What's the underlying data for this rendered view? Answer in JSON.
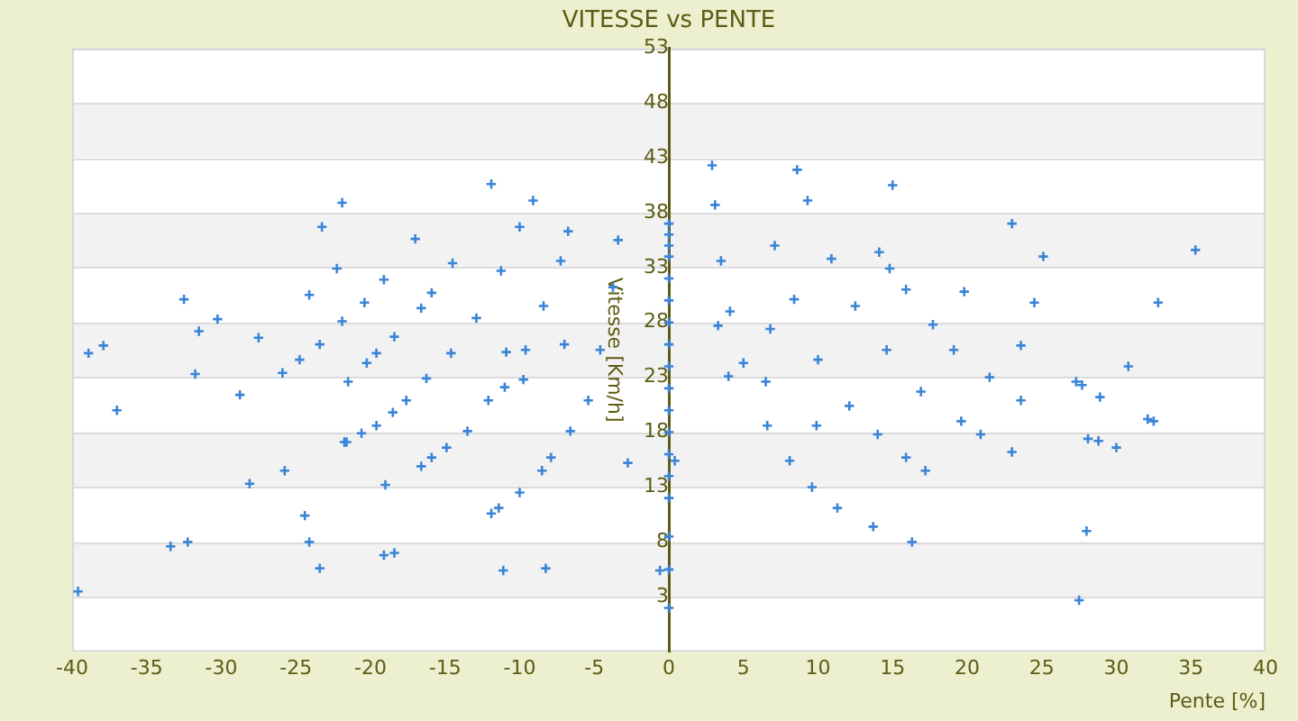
{
  "chart_data": {
    "type": "scatter",
    "title": "VITESSE vs PENTE",
    "xlabel": "Pente [%]",
    "ylabel": "Vitesse [Km/h]",
    "xlim": [
      -40,
      40
    ],
    "xticks": [
      -40,
      -35,
      -30,
      -25,
      -20,
      -15,
      -10,
      -5,
      0,
      5,
      10,
      15,
      20,
      25,
      30,
      35,
      40
    ],
    "ylim": [
      -2,
      53
    ],
    "yticks": [
      3,
      8,
      13,
      18,
      23,
      28,
      33,
      38,
      43,
      48,
      53
    ],
    "grid": "y",
    "marker": "cross",
    "legend": false,
    "bands": [
      {
        "axis": "y",
        "from": 3,
        "to": 8,
        "color": "#f2f2f2"
      },
      {
        "axis": "y",
        "from": 13,
        "to": 18,
        "color": "#f2f2f2"
      },
      {
        "axis": "y",
        "from": 23,
        "to": 28,
        "color": "#f2f2f2"
      },
      {
        "axis": "y",
        "from": 33,
        "to": 38,
        "color": "#f2f2f2"
      },
      {
        "axis": "y",
        "from": 43,
        "to": 48,
        "color": "#f2f2f2"
      }
    ],
    "series": [
      {
        "color": "#3a84d8",
        "x": [
          3.5,
          4.1,
          5,
          6.6,
          8.1,
          9.6,
          11.3,
          13.7,
          7.1,
          8.4,
          10,
          12.1,
          14,
          15.9,
          17.2,
          10.9,
          12.5,
          14.6,
          16.9,
          19.6,
          15.9,
          17.7,
          19.1,
          21.5,
          2.9,
          8.6,
          15,
          9.3,
          3.1,
          23,
          25.1,
          35.3,
          14.1,
          14.8,
          19.8,
          24.5,
          32.8,
          3.3,
          6.8,
          23.6,
          30.8,
          4,
          6.5,
          27.3,
          27.7,
          28.9,
          23.6,
          32.1,
          32.5,
          9.9,
          20.9,
          28.1,
          28.8,
          30,
          23,
          0.4,
          28,
          16.3,
          27.5,
          -0.6,
          0,
          0,
          0,
          0,
          0,
          0,
          0,
          0,
          0,
          0,
          0,
          0,
          0,
          0,
          0,
          0,
          0,
          0,
          -3.4,
          -3.75,
          -4.6,
          -5.4,
          -6.6,
          -7.9,
          -8.5,
          -6.75,
          -7.25,
          -8.4,
          -9.6,
          -11,
          -12.1,
          -13.5,
          -10,
          -11.25,
          -12.9,
          -14.6,
          -16.25,
          -14.5,
          -15.9,
          -16.6,
          -19.1,
          -20.4,
          -21.9,
          -23.4,
          -24.75,
          -25.9,
          -18.4,
          -19.6,
          -20.25,
          -21.5,
          -18.5,
          -19.6,
          -20.6,
          -21.6,
          -14.9,
          -15.9,
          -16.6,
          -11.9,
          -9.1,
          -21.9,
          -23.25,
          -17,
          -22.25,
          -32.5,
          -24.1,
          -30.25,
          -31.5,
          -27.5,
          -38.9,
          -37.9,
          -31.75,
          -10.9,
          -7,
          -9.75,
          -37,
          -28.75,
          -17.6,
          -21.75,
          -25.75,
          -28.1,
          -19,
          -10,
          -11.9,
          -11.4,
          -24.4,
          -33.4,
          -32.25,
          -24.1,
          -19.1,
          -18.4,
          -23.4,
          -11.1,
          -8.25,
          -39.6,
          -2.75
        ],
        "values": [
          33.6,
          29,
          24.3,
          18.6,
          15.4,
          13,
          11.1,
          9.4,
          35,
          30.1,
          24.6,
          20.4,
          17.8,
          15.7,
          14.5,
          33.8,
          29.5,
          25.5,
          21.7,
          19,
          31,
          27.8,
          25.5,
          23,
          42.3,
          41.9,
          40.5,
          39.1,
          38.7,
          37,
          34,
          34.6,
          34.4,
          32.9,
          30.8,
          29.8,
          29.8,
          27.7,
          27.4,
          25.9,
          24,
          23.1,
          22.6,
          22.6,
          22.3,
          21.2,
          20.9,
          19.2,
          19,
          18.6,
          17.8,
          17.4,
          17.2,
          16.6,
          16.2,
          15.4,
          9,
          8,
          2.7,
          5.4,
          2,
          5.5,
          8.5,
          12,
          14,
          16,
          18,
          20,
          22,
          24,
          26,
          28,
          30,
          32,
          34,
          35,
          36,
          37,
          35.5,
          31.2,
          25.5,
          20.9,
          18.1,
          15.7,
          14.5,
          36.3,
          33.6,
          29.5,
          25.5,
          22.1,
          20.9,
          18.1,
          36.7,
          32.7,
          28.4,
          25.2,
          22.9,
          33.4,
          30.7,
          29.3,
          31.9,
          29.8,
          28.1,
          26,
          24.6,
          23.4,
          26.7,
          25.2,
          24.3,
          22.6,
          19.8,
          18.6,
          17.9,
          17.1,
          16.6,
          15.7,
          14.9,
          40.6,
          39.1,
          38.9,
          36.7,
          35.6,
          32.9,
          30.1,
          30.5,
          28.3,
          27.2,
          26.6,
          25.2,
          25.9,
          23.3,
          25.3,
          26,
          22.8,
          20,
          21.4,
          20.9,
          17.1,
          14.5,
          13.3,
          13.2,
          12.5,
          10.6,
          11.1,
          10.4,
          7.6,
          8,
          8,
          6.8,
          7,
          5.6,
          5.4,
          5.6,
          3.5,
          15.2
        ]
      }
    ]
  }
}
